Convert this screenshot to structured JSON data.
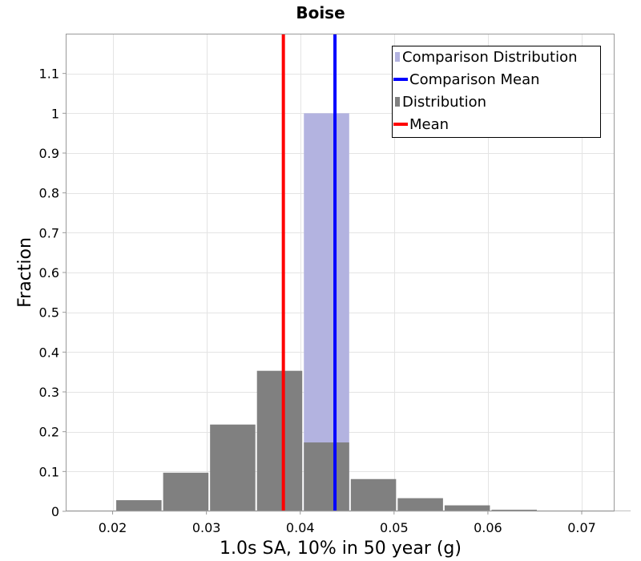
{
  "chart_data": {
    "type": "bar",
    "title": "Boise",
    "xlabel": "1.0s SA, 10% in 50 year (g)",
    "ylabel": "Fraction",
    "xlim": [
      0.015,
      0.0735
    ],
    "ylim": [
      0,
      1.2
    ],
    "xticks": [
      0.02,
      0.03,
      0.04,
      0.05,
      0.06,
      0.07
    ],
    "xtick_labels": [
      "0.02",
      "0.03",
      "0.04",
      "0.05",
      "0.06",
      "0.07"
    ],
    "yticks": [
      0,
      0.1,
      0.2,
      0.3,
      0.4,
      0.5,
      0.6,
      0.7,
      0.8,
      0.9,
      1,
      1.1
    ],
    "ytick_labels": [
      "0",
      "0.1",
      "0.2",
      "0.3",
      "0.4",
      "0.5",
      "0.6",
      "0.7",
      "0.8",
      "0.9",
      "1",
      "1.1"
    ],
    "grid": true,
    "bin_width": 0.005,
    "series": [
      {
        "name": "Comparison Distribution",
        "kind": "bar",
        "color": "#b3b3e0",
        "bins": [
          {
            "center": 0.0428,
            "value": 1.0
          }
        ]
      },
      {
        "name": "Distribution",
        "kind": "bar",
        "color": "#808080",
        "bins": [
          {
            "center": 0.0178,
            "value": 0.002
          },
          {
            "center": 0.0228,
            "value": 0.028
          },
          {
            "center": 0.0278,
            "value": 0.097
          },
          {
            "center": 0.0328,
            "value": 0.218
          },
          {
            "center": 0.0378,
            "value": 0.353
          },
          {
            "center": 0.0428,
            "value": 0.173
          },
          {
            "center": 0.0478,
            "value": 0.081
          },
          {
            "center": 0.0528,
            "value": 0.033
          },
          {
            "center": 0.0578,
            "value": 0.015
          },
          {
            "center": 0.0628,
            "value": 0.004
          },
          {
            "center": 0.0678,
            "value": 0.002
          },
          {
            "center": 0.0728,
            "value": 0.001
          }
        ]
      },
      {
        "name": "Mean",
        "kind": "vline",
        "color": "#ff0000",
        "x": 0.0382
      },
      {
        "name": "Comparison Mean",
        "kind": "vline",
        "color": "#0000ff",
        "x": 0.0437
      }
    ],
    "legend": {
      "position": "top-right",
      "entries": [
        {
          "label": "Comparison Distribution",
          "style": "bar",
          "color": "#b3b3e0"
        },
        {
          "label": "Comparison Mean",
          "style": "line",
          "color": "#0000ff"
        },
        {
          "label": "Distribution",
          "style": "bar",
          "color": "#808080"
        },
        {
          "label": "Mean",
          "style": "line",
          "color": "#ff0000"
        }
      ]
    }
  }
}
